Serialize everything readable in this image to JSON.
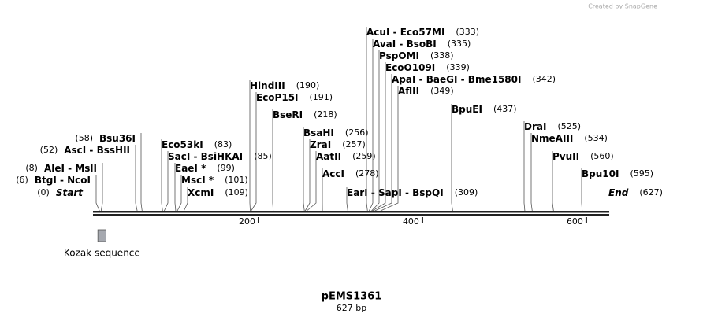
{
  "credit": "Created by SnapGene",
  "sequence_length": 627,
  "title": "pEMS1361",
  "subtitle": "627 bp",
  "ruler_ticks": [
    200,
    400,
    600
  ],
  "features": [
    {
      "name": "Kozak sequence",
      "start": 4,
      "end": 14
    }
  ],
  "sites": [
    {
      "label": "Start",
      "position": 0,
      "position_label": "(0)",
      "side": "left",
      "italic": true
    },
    {
      "label": "BtgI  -  NcoI",
      "position": 6,
      "position_label": "(6)",
      "side": "left"
    },
    {
      "label": "AleI  -  MslI",
      "position": 8,
      "position_label": "(8)",
      "side": "left"
    },
    {
      "label": "AscI  -  BssHII",
      "position": 52,
      "position_label": "(52)",
      "side": "left"
    },
    {
      "label": "Bsu36I",
      "position": 58,
      "position_label": "(58)",
      "side": "left"
    },
    {
      "label": "Eco53kI",
      "position": 83,
      "position_label": "(83)",
      "side": "right"
    },
    {
      "label": "SacI  -  BsiHKAI",
      "position": 85,
      "position_label": "(85)",
      "side": "right"
    },
    {
      "label": "EaeI *",
      "position": 99,
      "position_label": "(99)",
      "side": "right"
    },
    {
      "label": "MscI *",
      "position": 101,
      "position_label": "(101)",
      "side": "right"
    },
    {
      "label": "XcmI",
      "position": 109,
      "position_label": "(109)",
      "side": "right"
    },
    {
      "label": "HindIII",
      "position": 190,
      "position_label": "(190)",
      "side": "right"
    },
    {
      "label": "EcoP15I",
      "position": 191,
      "position_label": "(191)",
      "side": "right"
    },
    {
      "label": "BseRI",
      "position": 218,
      "position_label": "(218)",
      "side": "right"
    },
    {
      "label": "BsaHI",
      "position": 256,
      "position_label": "(256)",
      "side": "right"
    },
    {
      "label": "ZraI",
      "position": 257,
      "position_label": "(257)",
      "side": "right"
    },
    {
      "label": "AatII",
      "position": 259,
      "position_label": "(259)",
      "side": "right"
    },
    {
      "label": "AccI",
      "position": 278,
      "position_label": "(278)",
      "side": "right"
    },
    {
      "label": "EarI  -  SapI  -  BspQI",
      "position": 309,
      "position_label": "(309)",
      "side": "right"
    },
    {
      "label": "AcuI  -  Eco57MI",
      "position": 333,
      "position_label": "(333)",
      "side": "right"
    },
    {
      "label": "AvaI  -  BsoBI",
      "position": 335,
      "position_label": "(335)",
      "side": "right"
    },
    {
      "label": "PspOMI",
      "position": 338,
      "position_label": "(338)",
      "side": "right"
    },
    {
      "label": "EcoO109I",
      "position": 339,
      "position_label": "(339)",
      "side": "right"
    },
    {
      "label": "ApaI  -  BaeGI  -  Bme1580I",
      "position": 342,
      "position_label": "(342)",
      "side": "right"
    },
    {
      "label": "AflII",
      "position": 349,
      "position_label": "(349)",
      "side": "right"
    },
    {
      "label": "BpuEI",
      "position": 437,
      "position_label": "(437)",
      "side": "right"
    },
    {
      "label": "DraI",
      "position": 525,
      "position_label": "(525)",
      "side": "right"
    },
    {
      "label": "NmeAIII",
      "position": 534,
      "position_label": "(534)",
      "side": "right"
    },
    {
      "label": "PvuII",
      "position": 560,
      "position_label": "(560)",
      "side": "right"
    },
    {
      "label": "Bpu10I",
      "position": 595,
      "position_label": "(595)",
      "side": "right"
    },
    {
      "label": "End",
      "position": 627,
      "position_label": "(627)",
      "side": "right",
      "italic": true
    }
  ]
}
